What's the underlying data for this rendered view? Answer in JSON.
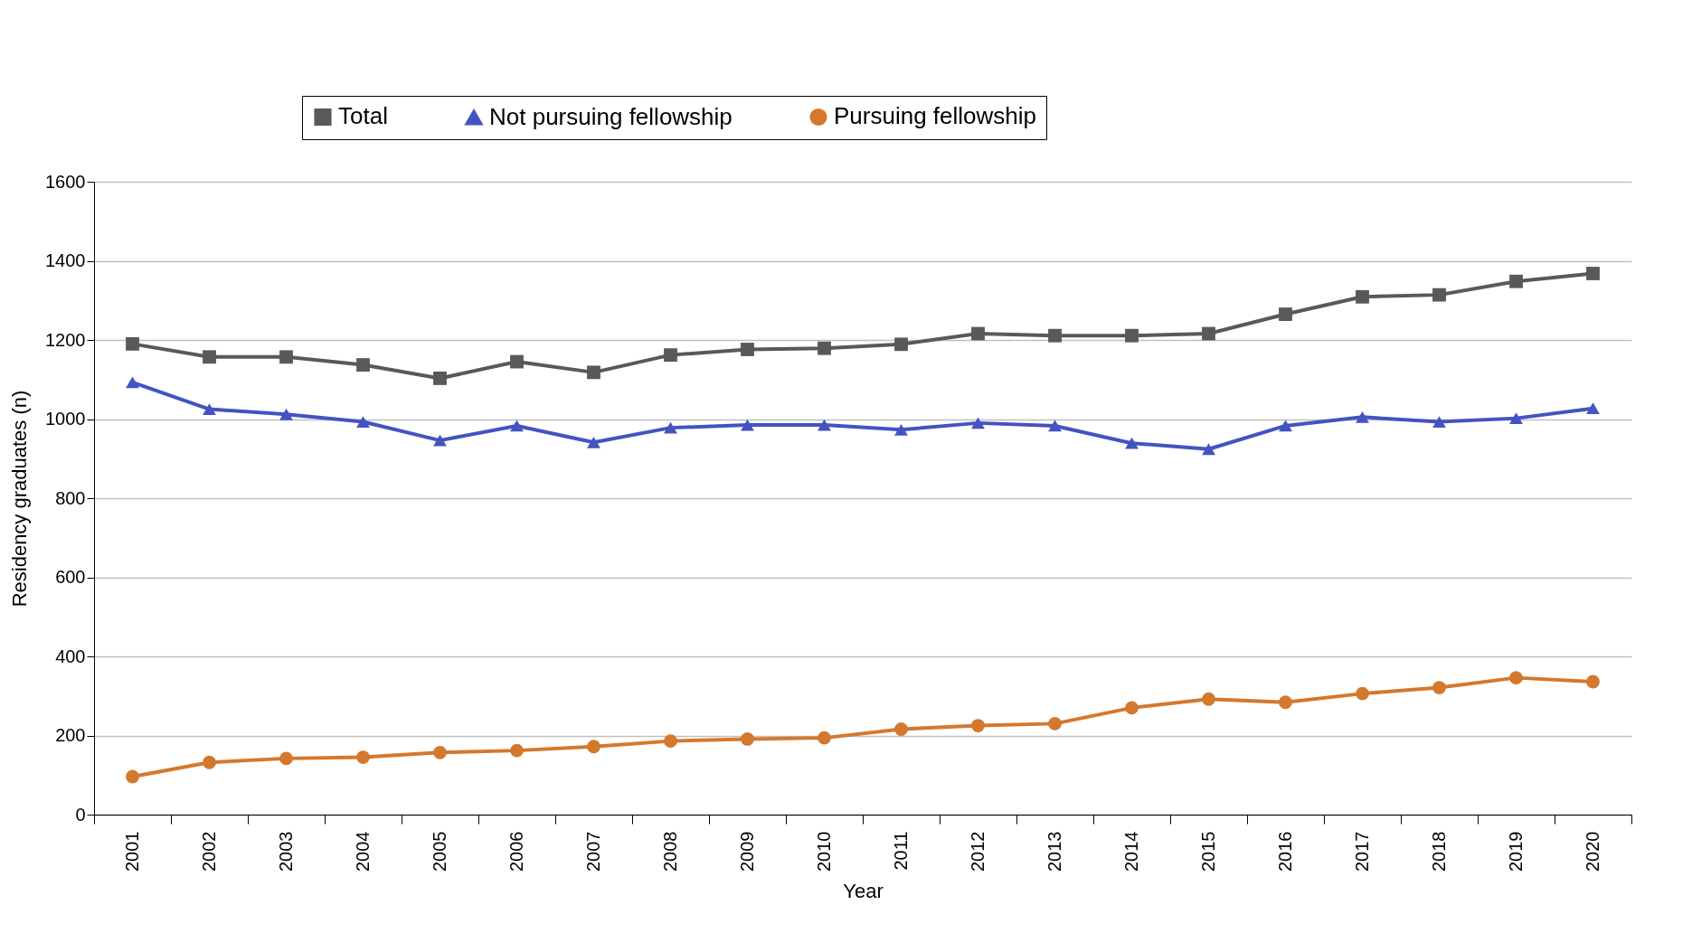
{
  "chart_data": {
    "type": "line",
    "xlabel": "Year",
    "ylabel": "Residency graduates (n)",
    "categories": [
      "2001",
      "2002",
      "2003",
      "2004",
      "2005",
      "2006",
      "2007",
      "2008",
      "2009",
      "2010",
      "2011",
      "2012",
      "2013",
      "2014",
      "2015",
      "2016",
      "2017",
      "2018",
      "2019",
      "2020"
    ],
    "ylim": [
      0,
      1600
    ],
    "yticks": [
      0,
      200,
      400,
      600,
      800,
      1000,
      1200,
      1400,
      1600
    ],
    "grid": "y",
    "legend": "top",
    "series": [
      {
        "name": "Total",
        "color": "#595959",
        "marker": "square",
        "values": [
          1190,
          1157,
          1157,
          1137,
          1103,
          1145,
          1118,
          1162,
          1176,
          1179,
          1189,
          1216,
          1211,
          1211,
          1216,
          1265,
          1309,
          1314,
          1348,
          1368
        ]
      },
      {
        "name": "Not pursuing fellowship",
        "color": "#4453c2",
        "marker": "triangle",
        "values": [
          1093,
          1025,
          1012,
          993,
          946,
          983,
          941,
          978,
          985,
          985,
          973,
          990,
          983,
          939,
          924,
          983,
          1005,
          993,
          1002,
          1027
        ]
      },
      {
        "name": "Pursuing fellowship",
        "color": "#d4782e",
        "marker": "circle",
        "values": [
          96,
          132,
          142,
          145,
          157,
          162,
          172,
          186,
          191,
          194,
          216,
          225,
          230,
          270,
          292,
          284,
          306,
          321,
          346,
          336
        ]
      }
    ]
  }
}
